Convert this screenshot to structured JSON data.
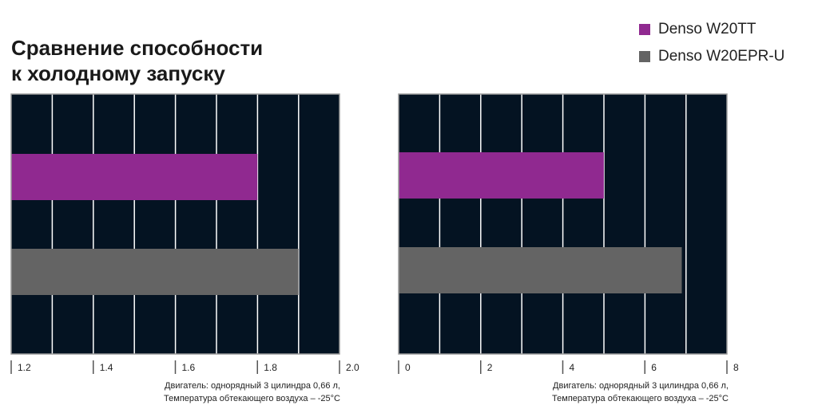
{
  "title": {
    "line1": "Сравнение способности",
    "line2": "к холодному запуску"
  },
  "colors": {
    "background": "#041322",
    "grid": "#ffffff",
    "border": "#9a9a9a",
    "series1": "#902990",
    "series2": "#646464"
  },
  "chart_data": [
    {
      "type": "bar",
      "orientation": "horizontal",
      "series": [
        {
          "name": "Denso W20TT",
          "values": [
            1.8
          ]
        },
        {
          "name": "Denso W20EPR-U",
          "values": [
            1.9
          ]
        }
      ],
      "xlim": [
        1.2,
        2.0
      ],
      "xticks": [
        "1.2",
        "1.4",
        "1.6",
        "1.8",
        "2.0"
      ],
      "grid": true,
      "caption": [
        "Двигатель: однорядный 3 цилиндра 0,66 л,",
        "Температура обтекающего воздуха – -25°C"
      ]
    },
    {
      "type": "bar",
      "orientation": "horizontal",
      "series": [
        {
          "name": "Denso W20TT",
          "values": [
            5.0
          ]
        },
        {
          "name": "Denso W20EPR-U",
          "values": [
            6.9
          ]
        }
      ],
      "xlim": [
        0,
        8
      ],
      "xticks": [
        "0",
        "2",
        "4",
        "6",
        "8"
      ],
      "grid": true,
      "caption": [
        "Двигатель: однорядный 3 цилиндра 0,66 л,",
        "Температура обтекающего воздуха – -25°C"
      ]
    }
  ],
  "legend": [
    {
      "label": "Denso W20TT",
      "color": "#902990"
    },
    {
      "label": "Denso W20EPR-U",
      "color": "#646464"
    }
  ]
}
